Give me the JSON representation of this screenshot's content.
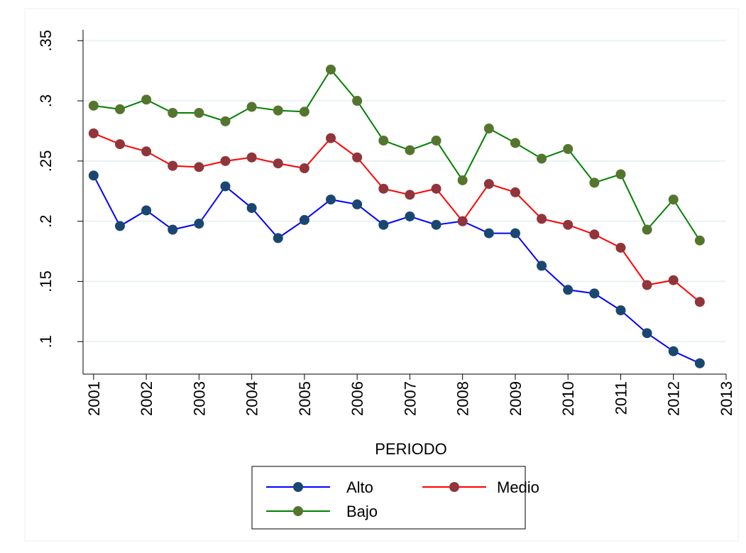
{
  "chart_data": {
    "type": "line",
    "x": [
      2001,
      2001.5,
      2002,
      2002.5,
      2003,
      2003.5,
      2004,
      2004.5,
      2005,
      2005.5,
      2006,
      2006.5,
      2007,
      2007.5,
      2008,
      2008.5,
      2009,
      2009.5,
      2010,
      2010.5,
      2011,
      2011.5,
      2012,
      2012.5
    ],
    "series": [
      {
        "name": "Alto",
        "color": "#0000ff",
        "marker_color": "#1a476f",
        "values": [
          0.238,
          0.196,
          0.209,
          0.193,
          0.198,
          0.229,
          0.211,
          0.186,
          0.201,
          0.218,
          0.214,
          0.197,
          0.204,
          0.197,
          0.2,
          0.19,
          0.19,
          0.163,
          0.143,
          0.14,
          0.126,
          0.107,
          0.092,
          0.082
        ]
      },
      {
        "name": "Medio",
        "color": "#ff0000",
        "marker_color": "#90353b",
        "values": [
          0.273,
          0.264,
          0.258,
          0.246,
          0.245,
          0.25,
          0.253,
          0.248,
          0.244,
          0.269,
          0.253,
          0.227,
          0.222,
          0.227,
          0.2,
          0.231,
          0.224,
          0.202,
          0.197,
          0.189,
          0.178,
          0.147,
          0.151,
          0.133
        ]
      },
      {
        "name": "Bajo",
        "color": "#008000",
        "marker_color": "#55752f",
        "values": [
          0.296,
          0.293,
          0.301,
          0.29,
          0.29,
          0.283,
          0.295,
          0.292,
          0.291,
          0.326,
          0.3,
          0.267,
          0.259,
          0.267,
          0.234,
          0.277,
          0.265,
          0.252,
          0.26,
          0.232,
          0.239,
          0.193,
          0.218,
          0.184
        ]
      }
    ],
    "xlabel": "PERIODO",
    "xlim": [
      2000.8,
      2013
    ],
    "xticks": [
      2001,
      2002,
      2003,
      2004,
      2005,
      2006,
      2007,
      2008,
      2009,
      2010,
      2011,
      2012,
      2013
    ],
    "ylim": [
      0.073,
      0.359
    ],
    "yticks": [
      {
        "value": 0.1,
        "label": ".1"
      },
      {
        "value": 0.15,
        "label": ".15"
      },
      {
        "value": 0.2,
        "label": ".2"
      },
      {
        "value": 0.25,
        "label": ".25"
      },
      {
        "value": 0.3,
        "label": ".3"
      },
      {
        "value": 0.35,
        "label": ".35"
      }
    ],
    "grid": true
  }
}
